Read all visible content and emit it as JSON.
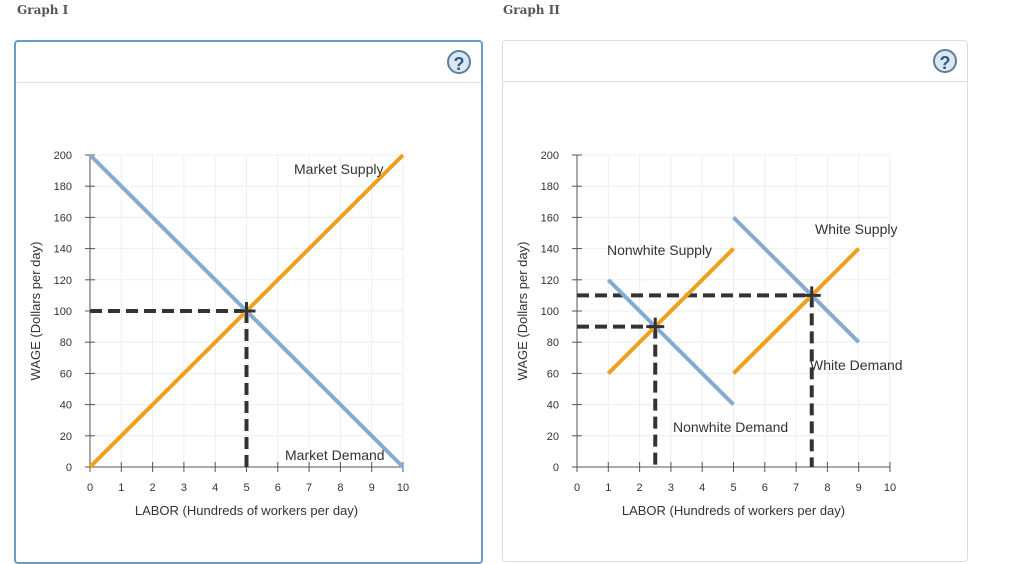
{
  "graphs": [
    {
      "title": "Graph I",
      "help": "?"
    },
    {
      "title": "Graph II",
      "help": "?"
    }
  ],
  "chart_data": [
    {
      "type": "line",
      "xlabel": "LABOR (Hundreds of workers per day)",
      "ylabel": "WAGE (Dollars per day)",
      "xlim": [
        0,
        10
      ],
      "ylim": [
        0,
        200
      ],
      "xticks": [
        0,
        1,
        2,
        3,
        4,
        5,
        6,
        7,
        8,
        9,
        10
      ],
      "yticks": [
        0,
        20,
        40,
        60,
        80,
        100,
        120,
        140,
        160,
        180,
        200
      ],
      "grid": true,
      "series": [
        {
          "name": "Market Supply",
          "color": "#f0a020",
          "points": [
            [
              0,
              0
            ],
            [
              10,
              200
            ]
          ]
        },
        {
          "name": "Market Demand",
          "color": "#85acd0",
          "points": [
            [
              0,
              200
            ],
            [
              10,
              0
            ]
          ]
        }
      ],
      "equilibria": [
        [
          5,
          100
        ]
      ]
    },
    {
      "type": "line",
      "xlabel": "LABOR (Hundreds of workers per day)",
      "ylabel": "WAGE (Dollars per day)",
      "xlim": [
        0,
        10
      ],
      "ylim": [
        0,
        200
      ],
      "xticks": [
        0,
        1,
        2,
        3,
        4,
        5,
        6,
        7,
        8,
        9,
        10
      ],
      "yticks": [
        0,
        20,
        40,
        60,
        80,
        100,
        120,
        140,
        160,
        180,
        200
      ],
      "grid": true,
      "series": [
        {
          "name": "Nonwhite Supply",
          "color": "#f0a020",
          "points": [
            [
              1,
              60
            ],
            [
              5,
              140
            ]
          ]
        },
        {
          "name": "Nonwhite Demand",
          "color": "#85acd0",
          "points": [
            [
              1,
              120
            ],
            [
              5,
              40
            ]
          ]
        },
        {
          "name": "White Supply",
          "color": "#f0a020",
          "points": [
            [
              5,
              60
            ],
            [
              9,
              140
            ]
          ]
        },
        {
          "name": "White Demand",
          "color": "#85acd0",
          "points": [
            [
              5,
              160
            ],
            [
              9,
              80
            ]
          ]
        }
      ],
      "equilibria": [
        [
          2.5,
          90
        ],
        [
          7.5,
          110
        ]
      ]
    }
  ]
}
